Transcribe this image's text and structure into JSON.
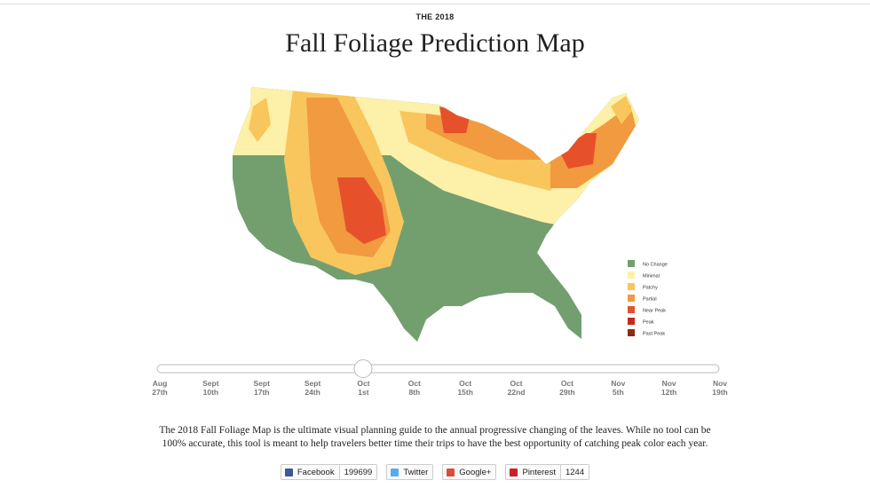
{
  "header": {
    "kicker": "THE 2018",
    "title": "Fall Foliage Prediction Map"
  },
  "legend": [
    {
      "label": "No Change",
      "color": "#739f6f"
    },
    {
      "label": "Minimal",
      "color": "#fdf0a8"
    },
    {
      "label": "Patchy",
      "color": "#f8c65c"
    },
    {
      "label": "Partial",
      "color": "#f19a3f"
    },
    {
      "label": "Near Peak",
      "color": "#e6512c"
    },
    {
      "label": "Peak",
      "color": "#c6281e"
    },
    {
      "label": "Past Peak",
      "color": "#8c2b14"
    }
  ],
  "timeline": [
    {
      "month": "Aug",
      "day": "27th"
    },
    {
      "month": "Sept",
      "day": "10th"
    },
    {
      "month": "Sept",
      "day": "17th"
    },
    {
      "month": "Sept",
      "day": "24th"
    },
    {
      "month": "Oct",
      "day": "1st"
    },
    {
      "month": "Oct",
      "day": "8th"
    },
    {
      "month": "Oct",
      "day": "15th"
    },
    {
      "month": "Oct",
      "day": "22nd"
    },
    {
      "month": "Oct",
      "day": "29th"
    },
    {
      "month": "Nov",
      "day": "5th"
    },
    {
      "month": "Nov",
      "day": "12th"
    },
    {
      "month": "Nov",
      "day": "19th"
    }
  ],
  "description": "The 2018 Fall Foliage Map is the ultimate visual planning guide to the annual progressive changing of the leaves. While no tool can be 100% accurate, this tool is meant to help travelers better time their trips to have the best opportunity of catching peak color each year.",
  "share": [
    {
      "label": "Facebook",
      "count": 199699
    },
    {
      "label": "Twitter"
    },
    {
      "label": "Google+"
    },
    {
      "label": "Pinterest",
      "count": 1244
    }
  ]
}
